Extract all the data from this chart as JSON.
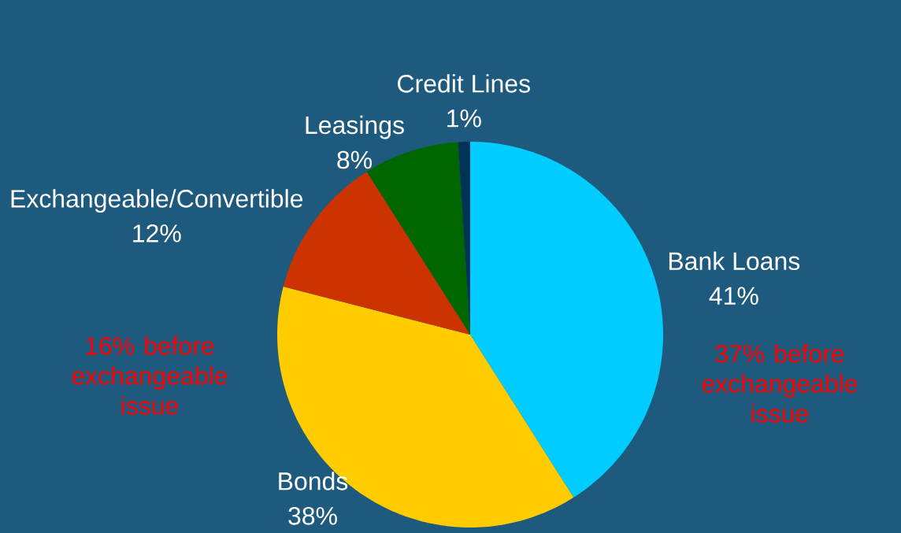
{
  "chart_data": {
    "type": "pie",
    "categories": [
      "Bank Loans",
      "Bonds",
      "Exchangeable/Convertible",
      "Leasings",
      "Credit Lines"
    ],
    "values": [
      41,
      38,
      12,
      8,
      1
    ],
    "value_labels": [
      "41%",
      "38%",
      "12%",
      "8%",
      "1%"
    ],
    "colors": [
      "#00ccff",
      "#ffcc00",
      "#cc3300",
      "#006600",
      "#003355"
    ],
    "annotations": [
      "37% before exchangeable issue",
      "16% before exchangeable issue"
    ]
  }
}
